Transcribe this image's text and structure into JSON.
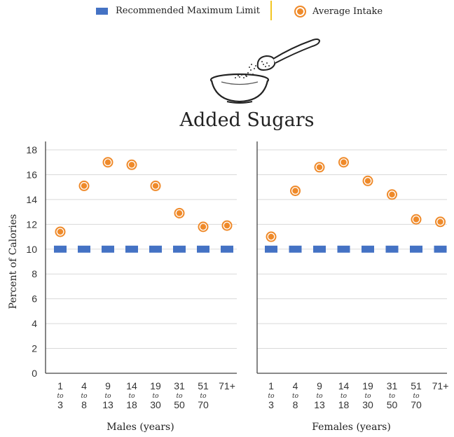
{
  "legend": {
    "limit_label": "Recommended Maximum Limit",
    "intake_label": "Average Intake"
  },
  "colors": {
    "limit": "#4472c4",
    "intake": "#ef8a2a",
    "grid": "#d9d9d9",
    "axis": "#444444",
    "divider": "#f3c623"
  },
  "title": "Added Sugars",
  "chart_data": [
    {
      "type": "scatter",
      "title": "",
      "xlabel": "Males (years)",
      "ylabel": "Percent of Calories",
      "ylim": [
        0,
        18
      ],
      "yticks": [
        0,
        2,
        4,
        6,
        8,
        10,
        12,
        14,
        16,
        18
      ],
      "grid": true,
      "categories": [
        {
          "top": "1",
          "mid": "to",
          "bottom": "3"
        },
        {
          "top": "4",
          "mid": "to",
          "bottom": "8"
        },
        {
          "top": "9",
          "mid": "to",
          "bottom": "13"
        },
        {
          "top": "14",
          "mid": "to",
          "bottom": "18"
        },
        {
          "top": "19",
          "mid": "to",
          "bottom": "30"
        },
        {
          "top": "31",
          "mid": "to",
          "bottom": "50"
        },
        {
          "top": "51",
          "mid": "to",
          "bottom": "70"
        },
        {
          "top": "71+",
          "mid": "",
          "bottom": ""
        }
      ],
      "series": [
        {
          "name": "Recommended Maximum Limit",
          "marker": "rect",
          "values": [
            10,
            10,
            10,
            10,
            10,
            10,
            10,
            10
          ]
        },
        {
          "name": "Average Intake",
          "marker": "circle",
          "values": [
            11.4,
            15.1,
            17.0,
            16.8,
            15.1,
            12.9,
            11.8,
            11.9
          ]
        }
      ]
    },
    {
      "type": "scatter",
      "title": "",
      "xlabel": "Females (years)",
      "ylabel": "",
      "ylim": [
        0,
        18
      ],
      "yticks": [
        0,
        2,
        4,
        6,
        8,
        10,
        12,
        14,
        16,
        18
      ],
      "grid": true,
      "categories": [
        {
          "top": "1",
          "mid": "to",
          "bottom": "3"
        },
        {
          "top": "4",
          "mid": "to",
          "bottom": "8"
        },
        {
          "top": "9",
          "mid": "to",
          "bottom": "13"
        },
        {
          "top": "14",
          "mid": "to",
          "bottom": "18"
        },
        {
          "top": "19",
          "mid": "to",
          "bottom": "30"
        },
        {
          "top": "31",
          "mid": "to",
          "bottom": "50"
        },
        {
          "top": "51",
          "mid": "to",
          "bottom": "70"
        },
        {
          "top": "71+",
          "mid": "",
          "bottom": ""
        }
      ],
      "series": [
        {
          "name": "Recommended Maximum Limit",
          "marker": "rect",
          "values": [
            10,
            10,
            10,
            10,
            10,
            10,
            10,
            10
          ]
        },
        {
          "name": "Average Intake",
          "marker": "circle",
          "values": [
            11.0,
            14.7,
            16.6,
            17.0,
            15.5,
            14.4,
            12.4,
            12.2
          ]
        }
      ]
    }
  ]
}
